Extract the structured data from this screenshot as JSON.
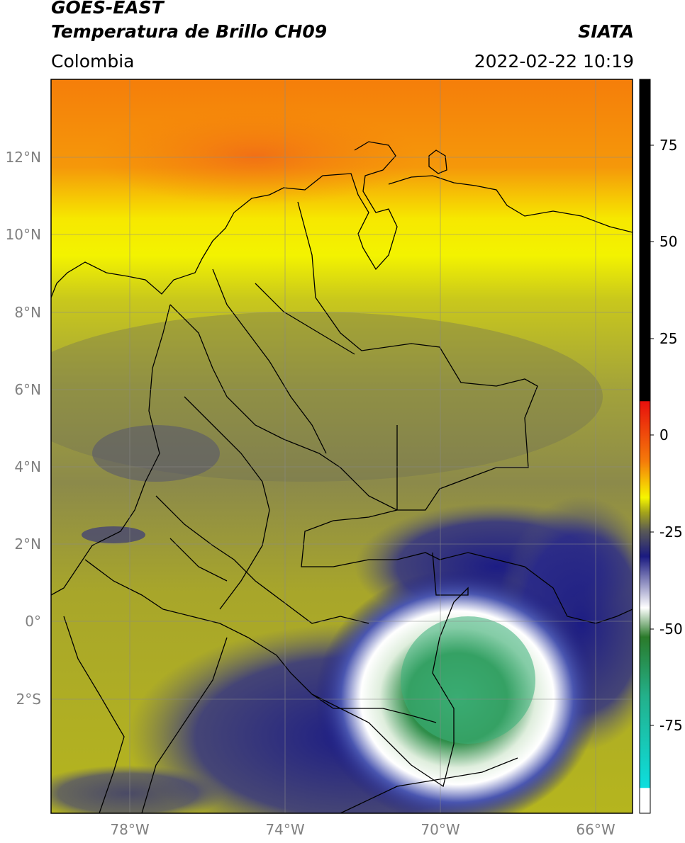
{
  "header": {
    "satellite": "GOES-EAST",
    "product": "Temperatura de Brillo CH09",
    "brand": "SIATA",
    "region": "Colombia",
    "timestamp": "2022-02-22 10:19"
  },
  "map": {
    "lat_labels": [
      "12°N",
      "10°N",
      "8°N",
      "6°N",
      "4°N",
      "2°N",
      "0°",
      "2°S"
    ],
    "lon_labels": [
      "78°W",
      "74°W",
      "70°W",
      "66°W"
    ],
    "colorbar": {
      "ticks": [
        "75",
        "50",
        "25",
        "0",
        "-25",
        "-50",
        "-75"
      ],
      "colors": {
        "black": "#000000",
        "red": "#e8100c",
        "orange": "#f57a0a",
        "yellow": "#f6f600",
        "olive": "#a5a51a",
        "navy": "#1a1a80",
        "white": "#ffffff",
        "green": "#2a7a2a",
        "teal": "#23b08a",
        "cyan": "#0ddede"
      }
    }
  }
}
